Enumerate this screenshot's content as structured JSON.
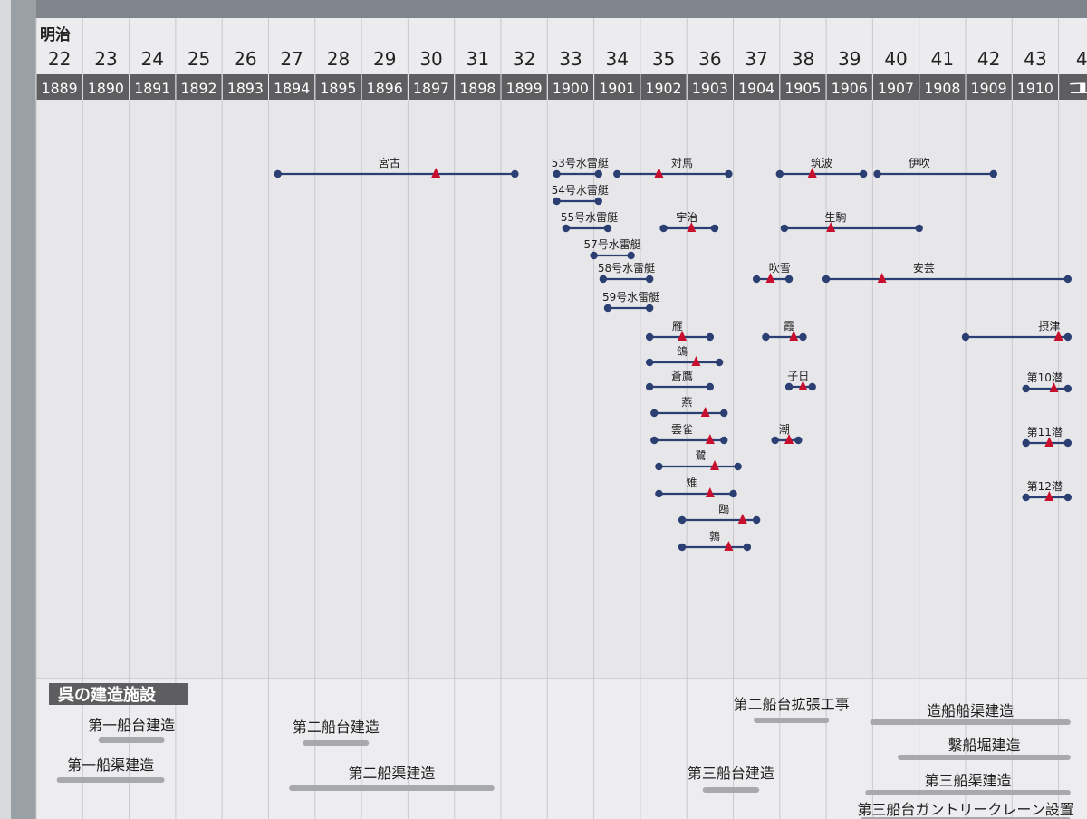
{
  "header": {
    "era_label": "明治",
    "columns": [
      {
        "era": "22",
        "year": "1889"
      },
      {
        "era": "23",
        "year": "1890"
      },
      {
        "era": "24",
        "year": "1891"
      },
      {
        "era": "25",
        "year": "1892"
      },
      {
        "era": "26",
        "year": "1893"
      },
      {
        "era": "27",
        "year": "1894"
      },
      {
        "era": "28",
        "year": "1895"
      },
      {
        "era": "29",
        "year": "1896"
      },
      {
        "era": "30",
        "year": "1897"
      },
      {
        "era": "31",
        "year": "1898"
      },
      {
        "era": "32",
        "year": "1899"
      },
      {
        "era": "33",
        "year": "1900"
      },
      {
        "era": "34",
        "year": "1901"
      },
      {
        "era": "35",
        "year": "1902"
      },
      {
        "era": "36",
        "year": "1903"
      },
      {
        "era": "37",
        "year": "1904"
      },
      {
        "era": "38",
        "year": "1905"
      },
      {
        "era": "39",
        "year": "1906"
      },
      {
        "era": "40",
        "year": "1907"
      },
      {
        "era": "41",
        "year": "1908"
      },
      {
        "era": "42",
        "year": "1909"
      },
      {
        "era": "43",
        "year": "1910"
      },
      {
        "era": "4",
        "year": "1"
      }
    ]
  },
  "colors": {
    "timeline_line": "#2b3f73",
    "launch_marker": "#c8102e",
    "header_band": "#5e5d5f",
    "facility_bar": "#a8a9ad"
  },
  "vessels": [
    {
      "name": "宮古",
      "start": 1894.2,
      "end": 1899.3,
      "launch": 1897.6,
      "label_x": 1896.6
    },
    {
      "name": "53号水雷艇",
      "start": 1900.2,
      "end": 1901.1,
      "launch": null,
      "label_x": 1900.7
    },
    {
      "name": "対馬",
      "start": 1901.5,
      "end": 1903.9,
      "launch": 1902.4,
      "label_x": 1902.9
    },
    {
      "name": "筑波",
      "start": 1905.0,
      "end": 1906.8,
      "launch": 1905.7,
      "label_x": 1905.9
    },
    {
      "name": "伊吹",
      "start": 1907.1,
      "end": 1909.6,
      "launch": null,
      "label_x": 1908.0
    },
    {
      "name": "54号水雷艇",
      "start": 1900.2,
      "end": 1901.1,
      "launch": null,
      "label_x": 1900.7
    },
    {
      "name": "55号水雷艇",
      "start": 1900.4,
      "end": 1901.3,
      "launch": null,
      "label_x": 1900.9
    },
    {
      "name": "宇治",
      "start": 1902.5,
      "end": 1903.6,
      "launch": 1903.1,
      "label_x": 1903.0
    },
    {
      "name": "生駒",
      "start": 1905.1,
      "end": 1908.0,
      "launch": 1906.1,
      "label_x": 1906.2
    },
    {
      "name": "57号水雷艇",
      "start": 1901.0,
      "end": 1901.8,
      "launch": null,
      "label_x": 1901.4
    },
    {
      "name": "58号水雷艇",
      "start": 1901.2,
      "end": 1902.2,
      "launch": null,
      "label_x": 1901.7
    },
    {
      "name": "吹雪",
      "start": 1904.5,
      "end": 1905.2,
      "launch": 1904.8,
      "label_x": 1905.0
    },
    {
      "name": "安芸",
      "start": 1906.0,
      "end": 1911.2,
      "launch": 1907.2,
      "label_x": 1908.1
    },
    {
      "name": "59号水雷艇",
      "start": 1901.3,
      "end": 1902.2,
      "launch": null,
      "label_x": 1901.8
    },
    {
      "name": "雁",
      "start": 1902.2,
      "end": 1903.5,
      "launch": 1902.9,
      "label_x": 1902.8
    },
    {
      "name": "霞",
      "start": 1904.7,
      "end": 1905.5,
      "launch": 1905.3,
      "label_x": 1905.2
    },
    {
      "name": "摂津",
      "start": 1909.0,
      "end": 1911.2,
      "launch": 1911.0,
      "label_x": 1910.8
    },
    {
      "name": "鴿",
      "start": 1902.2,
      "end": 1903.7,
      "launch": 1903.2,
      "label_x": 1902.9
    },
    {
      "name": "蒼鷹",
      "start": 1902.2,
      "end": 1903.5,
      "launch": null,
      "label_x": 1902.9
    },
    {
      "name": "子日",
      "start": 1905.2,
      "end": 1905.7,
      "launch": 1905.5,
      "label_x": 1905.4
    },
    {
      "name": "第10潜",
      "start": 1910.3,
      "end": 1911.2,
      "launch": 1910.9,
      "label_x": 1910.7
    },
    {
      "name": "燕",
      "start": 1902.3,
      "end": 1903.8,
      "launch": 1903.4,
      "label_x": 1903.0
    },
    {
      "name": "雲雀",
      "start": 1902.3,
      "end": 1903.8,
      "launch": 1903.5,
      "label_x": 1902.9
    },
    {
      "name": "潮",
      "start": 1904.9,
      "end": 1905.4,
      "launch": 1905.2,
      "label_x": 1905.1
    },
    {
      "name": "第11潜",
      "start": 1910.3,
      "end": 1911.2,
      "launch": 1910.8,
      "label_x": 1910.7
    },
    {
      "name": "鷺",
      "start": 1902.4,
      "end": 1904.1,
      "launch": 1903.6,
      "label_x": 1903.3
    },
    {
      "name": "雉",
      "start": 1902.4,
      "end": 1904.0,
      "launch": 1903.5,
      "label_x": 1903.1
    },
    {
      "name": "第12潜",
      "start": 1910.3,
      "end": 1911.2,
      "launch": 1910.8,
      "label_x": 1910.7
    },
    {
      "name": "鴎",
      "start": 1902.9,
      "end": 1904.5,
      "launch": 1904.2,
      "label_x": 1903.8
    },
    {
      "name": "鶉",
      "start": 1902.9,
      "end": 1904.3,
      "launch": 1903.9,
      "label_x": 1903.6
    }
  ],
  "facilities": {
    "section_title": "呉の建造施設",
    "items": [
      {
        "name": "第一船台建造",
        "start": 1890.4,
        "end": 1891.7
      },
      {
        "name": "第二船台建造",
        "start": 1894.8,
        "end": 1896.1
      },
      {
        "name": "第一船渠建造",
        "start": 1889.5,
        "end": 1891.7
      },
      {
        "name": "第二船渠建造",
        "start": 1894.5,
        "end": 1898.8
      },
      {
        "name": "第二船台拡張工事",
        "start": 1904.5,
        "end": 1906.0
      },
      {
        "name": "造船船渠建造",
        "start": 1907.0,
        "end": 1911.2
      },
      {
        "name": "繫船堀建造",
        "start": 1907.6,
        "end": 1911.2
      },
      {
        "name": "第三船台建造",
        "start": 1903.4,
        "end": 1904.5
      },
      {
        "name": "第三船渠建造",
        "start": 1906.9,
        "end": 1911.2
      },
      {
        "name": "第三船台ガントリークレーン設置",
        "start": 1906.8,
        "end": 1911.2
      }
    ]
  }
}
